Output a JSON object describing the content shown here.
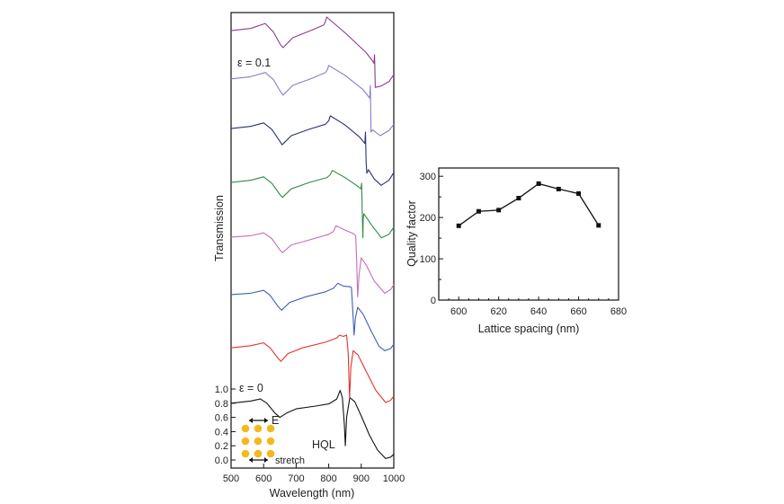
{
  "chart_data": [
    {
      "type": "line",
      "xlabel": "Wavelength (nm)",
      "ylabel": "Transmission",
      "xlim": [
        500,
        1000
      ],
      "xticks": [
        500,
        600,
        700,
        800,
        900,
        1000
      ],
      "yticks": [
        "0.0",
        "0.2",
        "0.4",
        "0.6",
        "0.8",
        "1.0"
      ],
      "grid": false,
      "note_offset": "curves vertically offset, stacked from ε = 0 (bottom) to ε = 0.1 (top)",
      "annotations": {
        "bottom_label": "ε = 0",
        "top_label": "ε = 0.1",
        "mode_label": "HQL",
        "inset_field": "E",
        "inset_stretch": "stretch"
      },
      "series": [
        {
          "color": "#111111",
          "points": [
            [
              500,
              0.8
            ],
            [
              560,
              0.83
            ],
            [
              590,
              0.86
            ],
            [
              610,
              0.8
            ],
            [
              635,
              0.66
            ],
            [
              650,
              0.6
            ],
            [
              670,
              0.66
            ],
            [
              700,
              0.72
            ],
            [
              760,
              0.76
            ],
            [
              800,
              0.79
            ],
            [
              825,
              0.86
            ],
            [
              835,
              0.98
            ],
            [
              842,
              0.88
            ],
            [
              848,
              0.5
            ],
            [
              851,
              0.2
            ],
            [
              855,
              0.6
            ],
            [
              865,
              0.88
            ],
            [
              880,
              0.82
            ],
            [
              900,
              0.62
            ],
            [
              925,
              0.35
            ],
            [
              950,
              0.14
            ],
            [
              975,
              0.02
            ],
            [
              990,
              0.04
            ],
            [
              1000,
              0.08
            ]
          ]
        },
        {
          "color": "#e83030",
          "points": [
            [
              500,
              1.58
            ],
            [
              560,
              1.61
            ],
            [
              600,
              1.65
            ],
            [
              620,
              1.58
            ],
            [
              645,
              1.43
            ],
            [
              653,
              1.39
            ],
            [
              675,
              1.5
            ],
            [
              720,
              1.58
            ],
            [
              790,
              1.66
            ],
            [
              825,
              1.72
            ],
            [
              833,
              1.76
            ],
            [
              845,
              1.74
            ],
            [
              855,
              1.76
            ],
            [
              860,
              1.5
            ],
            [
              864,
              0.87
            ],
            [
              868,
              1.3
            ],
            [
              875,
              1.54
            ],
            [
              890,
              1.48
            ],
            [
              915,
              1.25
            ],
            [
              945,
              0.98
            ],
            [
              975,
              0.81
            ],
            [
              990,
              0.84
            ],
            [
              1000,
              0.9
            ]
          ]
        },
        {
          "color": "#3f5fb0",
          "points": [
            [
              500,
              2.33
            ],
            [
              560,
              2.35
            ],
            [
              600,
              2.39
            ],
            [
              620,
              2.32
            ],
            [
              645,
              2.16
            ],
            [
              655,
              2.11
            ],
            [
              680,
              2.22
            ],
            [
              730,
              2.3
            ],
            [
              790,
              2.37
            ],
            [
              815,
              2.42
            ],
            [
              828,
              2.49
            ],
            [
              845,
              2.45
            ],
            [
              865,
              2.44
            ],
            [
              870,
              2.43
            ],
            [
              874,
              2.1
            ],
            [
              878,
              1.76
            ],
            [
              882,
              2.0
            ],
            [
              889,
              2.15
            ],
            [
              905,
              2.06
            ],
            [
              930,
              1.82
            ],
            [
              955,
              1.6
            ],
            [
              972,
              1.54
            ],
            [
              990,
              1.57
            ],
            [
              1000,
              1.63
            ]
          ]
        },
        {
          "color": "#c26fb5",
          "points": [
            [
              500,
              3.14
            ],
            [
              560,
              3.16
            ],
            [
              600,
              3.2
            ],
            [
              625,
              3.12
            ],
            [
              650,
              2.96
            ],
            [
              658,
              2.92
            ],
            [
              685,
              3.03
            ],
            [
              740,
              3.1
            ],
            [
              800,
              3.18
            ],
            [
              815,
              3.22
            ],
            [
              822,
              3.3
            ],
            [
              850,
              3.24
            ],
            [
              875,
              3.19
            ],
            [
              883,
              3.16
            ],
            [
              886,
              2.8
            ],
            [
              889,
              2.3
            ],
            [
              893,
              2.6
            ],
            [
              900,
              2.85
            ],
            [
              915,
              2.75
            ],
            [
              940,
              2.52
            ],
            [
              972,
              2.35
            ],
            [
              990,
              2.4
            ],
            [
              1000,
              2.47
            ]
          ]
        },
        {
          "color": "#2f8a4a",
          "points": [
            [
              500,
              3.91
            ],
            [
              560,
              3.94
            ],
            [
              600,
              3.99
            ],
            [
              625,
              3.9
            ],
            [
              650,
              3.74
            ],
            [
              658,
              3.7
            ],
            [
              685,
              3.82
            ],
            [
              740,
              3.91
            ],
            [
              795,
              3.98
            ],
            [
              805,
              4.02
            ],
            [
              811,
              4.08
            ],
            [
              850,
              3.98
            ],
            [
              885,
              3.87
            ],
            [
              899,
              3.82
            ],
            [
              901,
              3.9
            ],
            [
              903,
              3.5
            ],
            [
              905,
              3.13
            ],
            [
              906,
              3.4
            ],
            [
              908,
              3.47
            ],
            [
              930,
              3.32
            ],
            [
              962,
              3.13
            ],
            [
              985,
              3.18
            ],
            [
              1000,
              3.28
            ]
          ]
        },
        {
          "color": "#2b2f7a",
          "points": [
            [
              500,
              4.67
            ],
            [
              560,
              4.7
            ],
            [
              600,
              4.75
            ],
            [
              625,
              4.66
            ],
            [
              650,
              4.49
            ],
            [
              657,
              4.44
            ],
            [
              685,
              4.57
            ],
            [
              740,
              4.66
            ],
            [
              790,
              4.73
            ],
            [
              800,
              4.78
            ],
            [
              805,
              4.85
            ],
            [
              850,
              4.72
            ],
            [
              895,
              4.55
            ],
            [
              911,
              4.46
            ],
            [
              913,
              4.62
            ],
            [
              915,
              4.2
            ],
            [
              917,
              4.04
            ],
            [
              922,
              4.09
            ],
            [
              940,
              3.96
            ],
            [
              961,
              3.87
            ],
            [
              985,
              3.94
            ],
            [
              1000,
              4.05
            ]
          ]
        },
        {
          "color": "#8a7bc8",
          "points": [
            [
              500,
              5.37
            ],
            [
              560,
              5.4
            ],
            [
              605,
              5.46
            ],
            [
              630,
              5.36
            ],
            [
              652,
              5.19
            ],
            [
              660,
              5.14
            ],
            [
              690,
              5.28
            ],
            [
              750,
              5.38
            ],
            [
              790,
              5.46
            ],
            [
              796,
              5.5
            ],
            [
              800,
              5.56
            ],
            [
              850,
              5.42
            ],
            [
              905,
              5.22
            ],
            [
              926,
              5.1
            ],
            [
              928,
              5.28
            ],
            [
              930,
              4.62
            ],
            [
              935,
              4.65
            ],
            [
              958,
              4.57
            ],
            [
              985,
              4.64
            ],
            [
              1000,
              4.73
            ]
          ]
        },
        {
          "color": "#8b3a8e",
          "points": [
            [
              500,
              6.05
            ],
            [
              560,
              6.08
            ],
            [
              605,
              6.15
            ],
            [
              630,
              6.03
            ],
            [
              652,
              5.85
            ],
            [
              660,
              5.81
            ],
            [
              690,
              5.95
            ],
            [
              750,
              6.06
            ],
            [
              785,
              6.13
            ],
            [
              790,
              6.18
            ],
            [
              794,
              6.24
            ],
            [
              850,
              6.02
            ],
            [
              915,
              5.74
            ],
            [
              935,
              5.62
            ],
            [
              939,
              5.59
            ],
            [
              941,
              5.71
            ],
            [
              943,
              5.25
            ],
            [
              961,
              5.27
            ],
            [
              985,
              5.33
            ],
            [
              1000,
              5.43
            ]
          ]
        }
      ]
    },
    {
      "type": "line",
      "xlabel": "Lattice spacing (nm)",
      "ylabel": "Quality factor",
      "xlim": [
        590,
        680
      ],
      "ylim": [
        0,
        320
      ],
      "xticks": [
        600,
        620,
        640,
        660,
        680
      ],
      "yticks": [
        0,
        100,
        200,
        300
      ],
      "grid": false,
      "marker": "square",
      "x": [
        600,
        610,
        620,
        630,
        640,
        650,
        660,
        670
      ],
      "y": [
        180,
        215,
        218,
        247,
        282,
        269,
        258,
        181
      ]
    }
  ]
}
